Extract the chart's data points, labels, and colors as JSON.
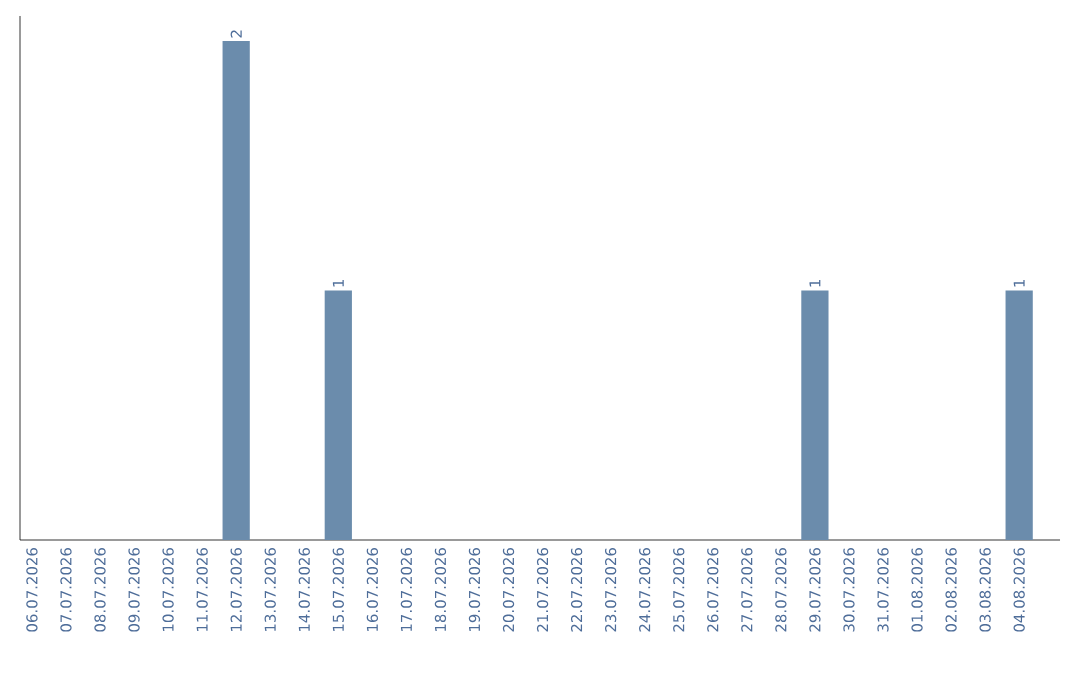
{
  "chart_data": {
    "type": "bar",
    "categories": [
      "06.07.2026",
      "07.07.2026",
      "08.07.2026",
      "09.07.2026",
      "10.07.2026",
      "11.07.2026",
      "12.07.2026",
      "13.07.2026",
      "14.07.2026",
      "15.07.2026",
      "16.07.2026",
      "17.07.2026",
      "18.07.2026",
      "19.07.2026",
      "20.07.2026",
      "21.07.2026",
      "22.07.2026",
      "23.07.2026",
      "24.07.2026",
      "25.07.2026",
      "26.07.2026",
      "27.07.2026",
      "28.07.2026",
      "29.07.2026",
      "30.07.2026",
      "31.07.2026",
      "01.08.2026",
      "02.08.2026",
      "03.08.2026",
      "04.08.2026"
    ],
    "values": [
      0,
      0,
      0,
      0,
      0,
      0,
      2,
      0,
      0,
      1,
      0,
      0,
      0,
      0,
      0,
      0,
      0,
      0,
      0,
      0,
      0,
      0,
      0,
      1,
      0,
      0,
      0,
      0,
      0,
      1
    ],
    "value_labels": [
      null,
      null,
      null,
      null,
      null,
      null,
      "2",
      null,
      null,
      "1",
      null,
      null,
      null,
      null,
      null,
      null,
      null,
      null,
      null,
      null,
      null,
      null,
      null,
      "1",
      null,
      null,
      null,
      null,
      null,
      "1"
    ],
    "color": "#6b8cac",
    "tick_labels": "x"
  }
}
